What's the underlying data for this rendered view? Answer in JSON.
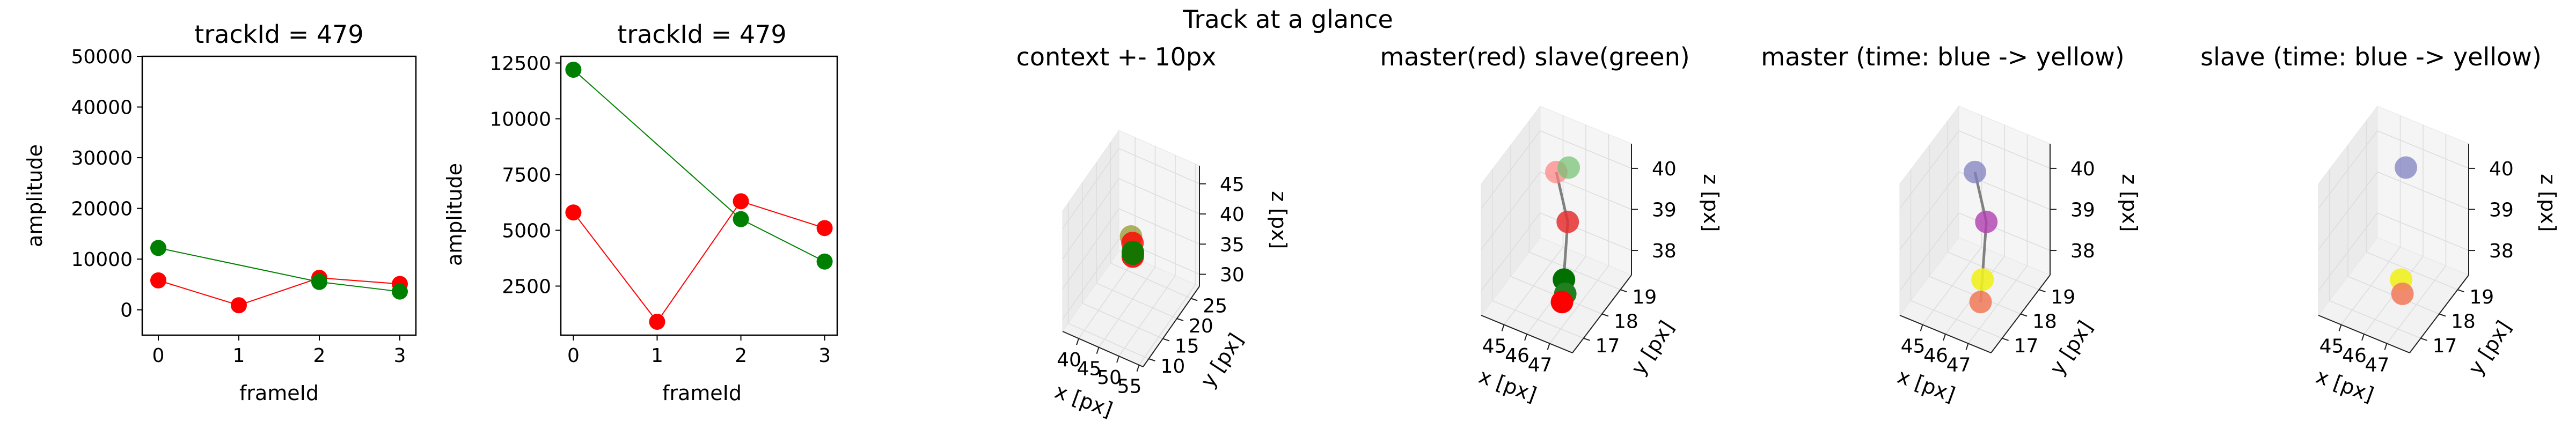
{
  "suptitle": "Track at a glance",
  "chart_data": [
    {
      "type": "line",
      "title": "trackId = 479",
      "xlabel": "frameId",
      "ylabel": "amplitude",
      "xlim": [
        -0.2,
        3.2
      ],
      "ylim": [
        -5000,
        50000
      ],
      "xticks": [
        0,
        1,
        2,
        3
      ],
      "yticks": [
        0,
        10000,
        20000,
        30000,
        40000,
        50000
      ],
      "series": [
        {
          "color": "#ff0000",
          "x": [
            0,
            1,
            2,
            3
          ],
          "y": [
            5800,
            900,
            6300,
            5100
          ]
        },
        {
          "color": "#008000",
          "x": [
            0,
            2,
            3
          ],
          "y": [
            12200,
            5500,
            3600
          ]
        }
      ]
    },
    {
      "type": "line",
      "title": "trackId = 479",
      "xlabel": "frameId",
      "ylabel": "amplitude",
      "xlim": [
        -0.15,
        3.15
      ],
      "ylim": [
        300,
        12800
      ],
      "xticks": [
        0,
        1,
        2,
        3
      ],
      "yticks": [
        2500,
        5000,
        7500,
        10000,
        12500
      ],
      "series": [
        {
          "color": "#ff0000",
          "x": [
            0,
            1,
            2,
            3
          ],
          "y": [
            5800,
            900,
            6300,
            5100
          ]
        },
        {
          "color": "#008000",
          "x": [
            0,
            2,
            3
          ],
          "y": [
            12200,
            5500,
            3600
          ]
        }
      ]
    },
    {
      "type": "scatter",
      "title": "context +- 10px",
      "xlabel": "x [px]",
      "ylabel": "y [px]",
      "zlabel": "z [px]",
      "xlim": [
        36,
        56
      ],
      "ylim": [
        8,
        28
      ],
      "zlim": [
        28,
        48
      ],
      "xticks": [
        40,
        45,
        50,
        55
      ],
      "yticks": [
        10,
        15,
        20,
        25
      ],
      "zticks": [
        30,
        35,
        40,
        45
      ],
      "points": [
        {
          "x": 46.0,
          "y": 18.0,
          "z": 40.0,
          "color": "#808000",
          "alpha": 0.6
        },
        {
          "x": 46.5,
          "y": 17.8,
          "z": 39.2,
          "color": "#ff0000",
          "alpha": 0.8
        },
        {
          "x": 46.8,
          "y": 17.5,
          "z": 38.0,
          "color": "#008000",
          "alpha": 0.9
        },
        {
          "x": 47.0,
          "y": 17.2,
          "z": 37.5,
          "color": "#ff0000",
          "alpha": 0.9
        },
        {
          "x": 46.9,
          "y": 17.4,
          "z": 37.8,
          "color": "#008000",
          "alpha": 0.9
        }
      ],
      "lines": []
    },
    {
      "type": "scatter",
      "title": "master(red) slave(green)",
      "xlabel": "x [px]",
      "ylabel": "y [px]",
      "zlabel": "z [px]",
      "xlim": [
        44,
        48
      ],
      "ylim": [
        16.4,
        19.6
      ],
      "zlim": [
        37.4,
        40.6
      ],
      "xticks": [
        45,
        46,
        47
      ],
      "yticks": [
        17,
        18,
        19
      ],
      "zticks": [
        38,
        39,
        40
      ],
      "points": [
        {
          "x": 46.0,
          "y": 18.0,
          "z": 40.4,
          "color": "#ff8080",
          "alpha": 0.7
        },
        {
          "x": 46.3,
          "y": 18.3,
          "z": 40.4,
          "color": "#70c070",
          "alpha": 0.7
        },
        {
          "x": 46.5,
          "y": 18.0,
          "z": 39.3,
          "color": "#e53030",
          "alpha": 0.85
        },
        {
          "x": 46.9,
          "y": 17.3,
          "z": 38.4,
          "color": "#007000",
          "alpha": 1.0
        },
        {
          "x": 47.2,
          "y": 17.0,
          "z": 38.3,
          "color": "#208020",
          "alpha": 1.0
        },
        {
          "x": 47.3,
          "y": 16.7,
          "z": 38.3,
          "color": "#ff0000",
          "alpha": 1.0
        }
      ],
      "lines": [
        {
          "color": "#808080",
          "points": [
            [
              46.0,
              18.0,
              40.4
            ],
            [
              46.5,
              18.0,
              39.3
            ],
            [
              47.3,
              16.7,
              38.3
            ]
          ]
        }
      ]
    },
    {
      "type": "scatter",
      "title": "master (time: blue -> yellow)",
      "xlabel": "x [px]",
      "ylabel": "y [px]",
      "zlabel": "z [px]",
      "xlim": [
        44,
        48
      ],
      "ylim": [
        16.4,
        19.6
      ],
      "zlim": [
        37.4,
        40.6
      ],
      "xticks": [
        45,
        46,
        47
      ],
      "yticks": [
        17,
        18,
        19
      ],
      "zticks": [
        38,
        39,
        40
      ],
      "points": [
        {
          "x": 46.0,
          "y": 18.0,
          "z": 40.4,
          "color": "#8080c0",
          "alpha": 0.75
        },
        {
          "x": 46.5,
          "y": 18.0,
          "z": 39.3,
          "color": "#b040b0",
          "alpha": 0.8
        },
        {
          "x": 46.9,
          "y": 17.3,
          "z": 38.4,
          "color": "#f0f020",
          "alpha": 0.9
        },
        {
          "x": 47.3,
          "y": 16.7,
          "z": 38.3,
          "color": "#f08060",
          "alpha": 0.9
        }
      ],
      "lines": [
        {
          "color": "#808080",
          "points": [
            [
              46.0,
              18.0,
              40.4
            ],
            [
              46.5,
              18.0,
              39.3
            ],
            [
              47.3,
              16.7,
              38.3
            ]
          ]
        }
      ]
    },
    {
      "type": "scatter",
      "title": "slave (time: blue -> yellow)",
      "xlabel": "x [px]",
      "ylabel": "y [px]",
      "zlabel": "z [px]",
      "xlim": [
        44,
        48
      ],
      "ylim": [
        16.4,
        19.6
      ],
      "zlim": [
        37.4,
        40.6
      ],
      "xticks": [
        45,
        46,
        47
      ],
      "yticks": [
        17,
        18,
        19
      ],
      "zticks": [
        38,
        39,
        40
      ],
      "points": [
        {
          "x": 46.3,
          "y": 18.3,
          "z": 40.4,
          "color": "#8080c0",
          "alpha": 0.75
        },
        {
          "x": 46.9,
          "y": 17.3,
          "z": 38.4,
          "color": "#f0f020",
          "alpha": 0.9
        },
        {
          "x": 47.2,
          "y": 17.0,
          "z": 38.3,
          "color": "#f08060",
          "alpha": 0.9
        }
      ],
      "lines": []
    }
  ]
}
